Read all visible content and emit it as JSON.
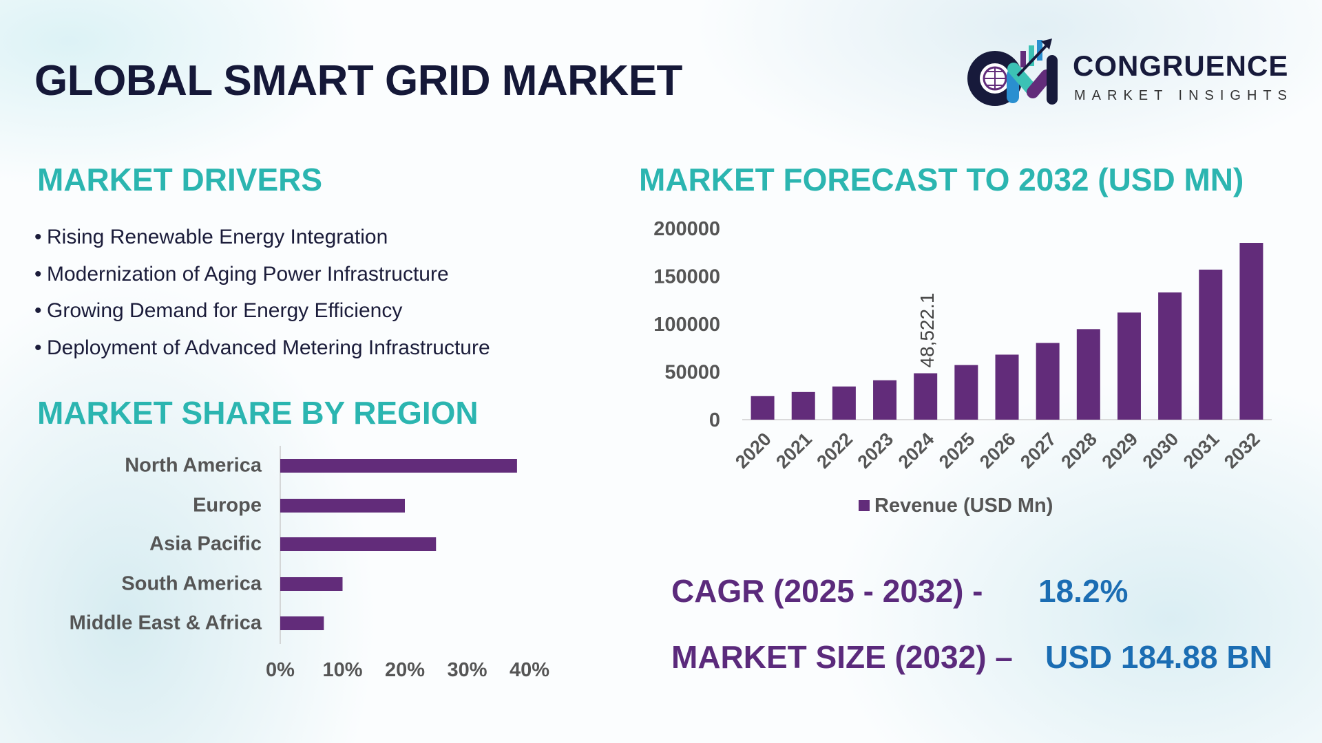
{
  "header": {
    "title": "GLOBAL SMART GRID MARKET"
  },
  "logo": {
    "name": "CONGRUENCE",
    "tagline": "MARKET INSIGHTS"
  },
  "drivers": {
    "heading": "MARKET DRIVERS",
    "bullet": "•",
    "items": [
      "Rising Renewable Energy Integration",
      "Modernization of Aging Power Infrastructure",
      "Growing Demand for Energy Efficiency",
      "Deployment of Advanced Metering Infrastructure"
    ]
  },
  "colors": {
    "heading": "#2bb5b0",
    "bar": "#622c7a",
    "kpi_label": "#5b2a7c",
    "kpi_value": "#1b6db3",
    "title": "#151838"
  },
  "region_heading": "MARKET SHARE BY REGION",
  "forecast_heading": "MARKET FORECAST TO 2032 (USD MN)",
  "kpis": {
    "cagr_label": "CAGR (2025 - 2032) -",
    "cagr_value": "18.2%",
    "size_label": "MARKET SIZE (2032) –",
    "size_value": "USD 184.88 BN"
  },
  "chart_data": [
    {
      "type": "bar",
      "orientation": "horizontal",
      "categories": [
        "North America",
        "Europe",
        "Asia Pacific",
        "South America",
        "Middle East & Africa"
      ],
      "values": [
        38,
        20,
        25,
        10,
        7
      ],
      "x_ticks": [
        "0%",
        "10%",
        "20%",
        "30%",
        "40%"
      ],
      "xlim": [
        0,
        40
      ],
      "grid": false
    },
    {
      "type": "bar",
      "categories": [
        "2020",
        "2021",
        "2022",
        "2023",
        "2024",
        "2025",
        "2026",
        "2027",
        "2028",
        "2029",
        "2030",
        "2031",
        "2032"
      ],
      "series": [
        {
          "name": "Revenue (USD Mn)",
          "values": [
            24600,
            28900,
            34700,
            41200,
            48522.1,
            57100,
            68000,
            80200,
            94700,
            112000,
            133000,
            156900,
            184880
          ]
        }
      ],
      "data_labels": [
        {
          "category": "2024",
          "text": "48,522.1"
        }
      ],
      "y_ticks": [
        "0",
        "50000",
        "100000",
        "150000",
        "200000"
      ],
      "ylim": [
        0,
        200000
      ],
      "grid": false,
      "legend": "bottom"
    }
  ]
}
